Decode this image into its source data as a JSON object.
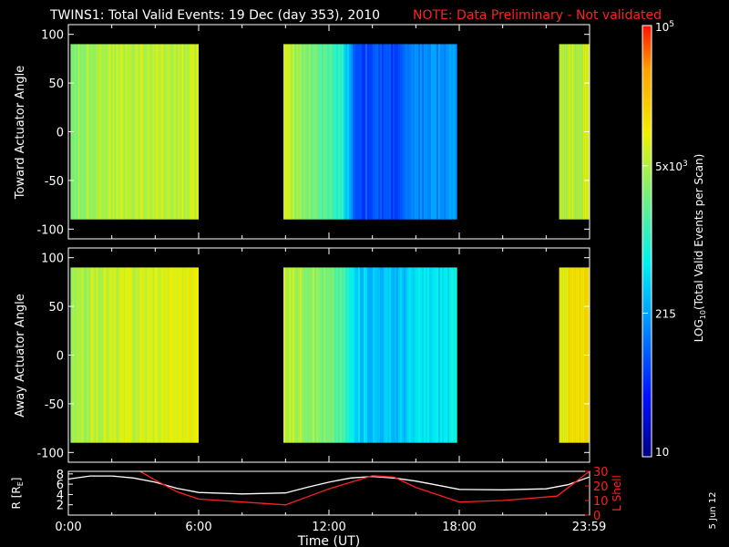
{
  "title": {
    "main": "TWINS1: Total Valid Events: 19 Dec (day 353), 2010",
    "note": "NOTE: Data Preliminary - Not validated"
  },
  "colors": {
    "background": "#000000",
    "axes": "#ffffff",
    "note": "#ff2020",
    "r_line": "#ffffff",
    "lshell_line": "#ff2020"
  },
  "footer_date": "5 Jun 12",
  "chart_data": [
    {
      "type": "heatmap",
      "name": "toward",
      "ylabel": "Toward Actuator Angle",
      "ylim": [
        -110,
        110
      ],
      "y_data_range": [
        -90,
        90
      ],
      "yticks": [
        100,
        50,
        0,
        -50,
        -100
      ],
      "xlim": [
        0,
        24
      ],
      "coverage_hours": [
        [
          0.1,
          6.0
        ],
        [
          9.9,
          17.9
        ],
        [
          22.6,
          23.99
        ]
      ],
      "profile_hours": [
        0.1,
        0.5,
        1.0,
        2.0,
        3.5,
        5.0,
        6.0,
        9.9,
        11.2,
        12.6,
        13.2,
        15.0,
        16.2,
        17.9,
        22.6,
        23.99
      ],
      "profile_log_events": [
        3.5,
        3.55,
        3.7,
        3.75,
        3.75,
        3.78,
        3.82,
        3.78,
        3.45,
        2.95,
        1.9,
        1.85,
        2.2,
        2.3,
        3.78,
        3.8
      ]
    },
    {
      "type": "heatmap",
      "name": "away",
      "ylabel": "Away Actuator Angle",
      "ylim": [
        -110,
        110
      ],
      "y_data_range": [
        -90,
        90
      ],
      "yticks": [
        100,
        50,
        0,
        -50,
        -100
      ],
      "xlim": [
        0,
        24
      ],
      "coverage_hours": [
        [
          0.1,
          6.0
        ],
        [
          9.9,
          17.9
        ],
        [
          22.6,
          23.99
        ]
      ],
      "profile_hours": [
        0.1,
        0.5,
        1.0,
        2.0,
        3.5,
        5.0,
        6.0,
        9.9,
        11.2,
        12.6,
        13.2,
        15.0,
        16.2,
        17.9,
        22.6,
        23.99
      ],
      "profile_log_events": [
        3.55,
        3.6,
        3.75,
        3.8,
        3.85,
        3.95,
        4.0,
        3.8,
        3.6,
        3.2,
        2.6,
        2.5,
        2.7,
        2.8,
        4.05,
        4.1
      ]
    },
    {
      "type": "line",
      "name": "orbit",
      "xlabel": "Time (UT)",
      "xticks": [
        "0:00",
        "6:00",
        "12:00",
        "18:00",
        "23:59"
      ],
      "xtick_hours": [
        0,
        6,
        12,
        18,
        23.98
      ],
      "xlim": [
        0,
        24
      ],
      "y_left_label": "R [R",
      "y_left_sub": "E",
      "y_left_label_end": "]",
      "y_left_ticks": [
        "8",
        "6",
        "4",
        "2"
      ],
      "y_left_tick_values": [
        8,
        6,
        4,
        2
      ],
      "y_left_lim": [
        0,
        8.5
      ],
      "y_right_label": "L Shell",
      "y_right_ticks": [
        "30",
        "20",
        "10",
        "0"
      ],
      "y_right_tick_values": [
        30,
        20,
        10,
        0
      ],
      "y_right_lim": [
        0,
        30
      ],
      "series": [
        {
          "name": "R",
          "axis": "left",
          "x": [
            0,
            1,
            2,
            3,
            4,
            5,
            6,
            8,
            10,
            11,
            12,
            13,
            14,
            15,
            16,
            17,
            18,
            20,
            22,
            23,
            23.99
          ],
          "y": [
            7.0,
            7.6,
            7.6,
            7.2,
            6.4,
            5.2,
            4.4,
            4.1,
            4.3,
            5.4,
            6.4,
            7.2,
            7.5,
            7.2,
            6.6,
            5.8,
            5.0,
            4.9,
            5.1,
            5.9,
            7.4
          ]
        },
        {
          "name": "L Shell",
          "axis": "right",
          "x": [
            3.3,
            4.0,
            5.0,
            6.0,
            10.0,
            12.0,
            14.0,
            15.0,
            16.0,
            18.0,
            20.0,
            22.5,
            23.99
          ],
          "y": [
            30,
            24,
            16,
            11,
            7,
            18,
            27,
            26,
            19,
            9,
            10,
            13,
            30
          ]
        }
      ]
    },
    {
      "type": "colorbar",
      "name": "colorbar",
      "label": "LOG",
      "label_sub": "10",
      "label_rest": "(Total Valid Events per Scan)",
      "scale_min_log": 1.0,
      "scale_max_log": 5.0,
      "ticks": [
        {
          "log": 1.0,
          "label": "10"
        },
        {
          "log": 2.332,
          "label": "215"
        },
        {
          "log": 3.699,
          "label": "5x10",
          "exp": "3"
        },
        {
          "log": 5.0,
          "label": "10",
          "exp": "5"
        }
      ]
    }
  ]
}
